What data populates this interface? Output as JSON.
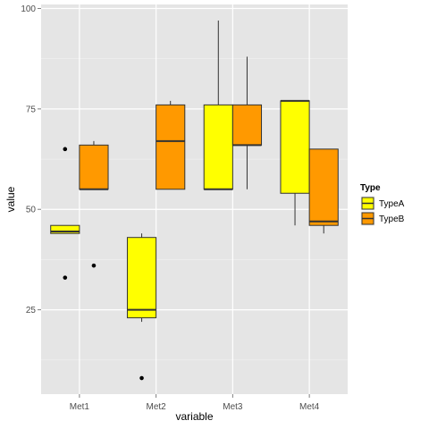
{
  "chart_data": {
    "type": "boxplot",
    "xlabel": "variable",
    "ylabel": "value",
    "categories": [
      "Met1",
      "Met2",
      "Met3",
      "Met4"
    ],
    "y_ticks": [
      25,
      50,
      75,
      100
    ],
    "ylim": [
      4,
      101
    ],
    "grid": true,
    "legend": {
      "title": "Type",
      "position": "right",
      "entries": [
        "TypeA",
        "TypeB"
      ]
    },
    "colors": {
      "TypeA": "#ffff00",
      "TypeB": "#ff9900",
      "panel_bg": "#e5e5e5",
      "grid_major": "#ffffff",
      "grid_minor": "#f2f2f2",
      "box_stroke": "#333333"
    },
    "series": [
      {
        "name": "TypeA",
        "boxes": [
          {
            "category": "Met1",
            "min": 44,
            "q1": 44,
            "median": 44.5,
            "q3": 46,
            "max": 46,
            "outliers": [
              65,
              33
            ]
          },
          {
            "category": "Met2",
            "min": 22,
            "q1": 23,
            "median": 25,
            "q3": 43,
            "max": 44,
            "outliers": [
              8
            ]
          },
          {
            "category": "Met3",
            "min": 55,
            "q1": 55,
            "median": 55,
            "q3": 76,
            "max": 97,
            "outliers": []
          },
          {
            "category": "Met4",
            "min": 46,
            "q1": 54,
            "median": 77,
            "q3": 77,
            "max": 77,
            "outliers": []
          }
        ]
      },
      {
        "name": "TypeB",
        "boxes": [
          {
            "category": "Met1",
            "min": 55,
            "q1": 55,
            "median": 55,
            "q3": 66,
            "max": 67,
            "outliers": [
              36
            ]
          },
          {
            "category": "Met2",
            "min": 55,
            "q1": 55,
            "median": 67,
            "q3": 76,
            "max": 77,
            "outliers": []
          },
          {
            "category": "Met3",
            "min": 55,
            "q1": 66,
            "median": 66,
            "q3": 76,
            "max": 88,
            "outliers": []
          },
          {
            "category": "Met4",
            "min": 44,
            "q1": 46,
            "median": 47,
            "q3": 65,
            "max": 65,
            "outliers": []
          }
        ]
      }
    ]
  }
}
